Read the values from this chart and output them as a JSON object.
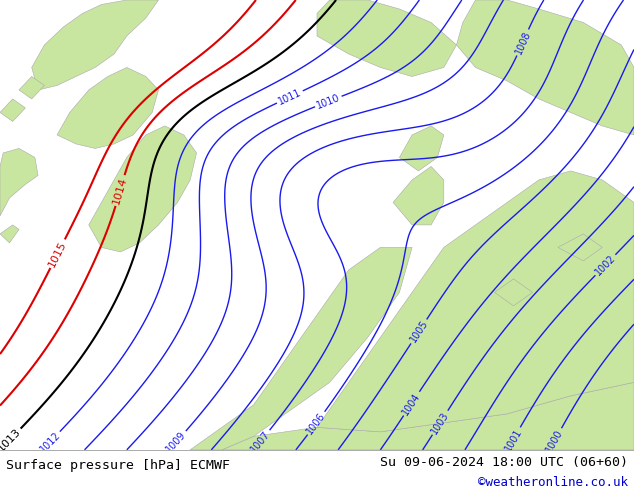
{
  "title_left": "Surface pressure [hPa] ECMWF",
  "title_right": "Su 09-06-2024 18:00 UTC (06+60)",
  "copyright": "©weatheronline.co.uk",
  "sea_color": "#d0d4de",
  "land_color": "#c8e6a0",
  "land_edge_color": "#aaaaaa",
  "isobar_blue_color": "#1a1aee",
  "isobar_black_color": "#000000",
  "isobar_red_color": "#dd0000",
  "footer_bg": "#d8e8c8",
  "footer_text_color": "#000000",
  "copyright_color": "#0000cc",
  "figsize": [
    6.34,
    4.9
  ],
  "dpi": 100,
  "blue_levels": [
    1000,
    1001,
    1002,
    1003,
    1004,
    1005,
    1006,
    1007,
    1008,
    1009,
    1010,
    1011,
    1012
  ],
  "black_levels": [
    1013
  ],
  "red_levels": [
    1014,
    1015
  ]
}
